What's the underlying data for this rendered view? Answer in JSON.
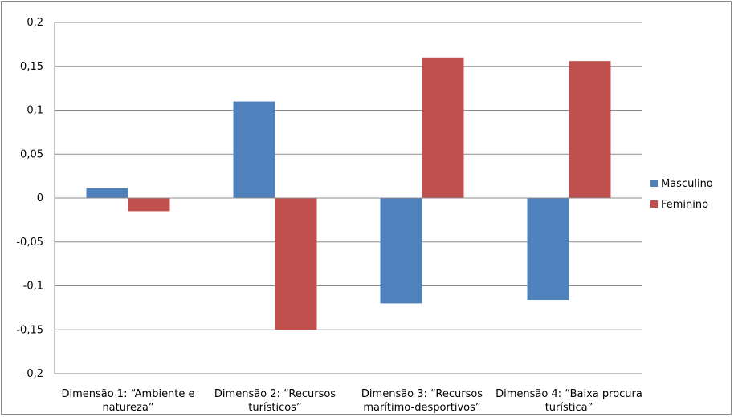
{
  "chart_data": {
    "type": "bar",
    "categories": [
      [
        "Dimensão 1: “Ambiente e",
        "natureza”"
      ],
      [
        "Dimensão 2: “Recursos",
        "turísticos”"
      ],
      [
        "Dimensão 3: “Recursos",
        "marítimo-desportivos”"
      ],
      [
        "Dimensão 4: “Baixa procura",
        "turística”"
      ]
    ],
    "series": [
      {
        "name": "Masculino",
        "color": "#4f81bd",
        "values": [
          0.011,
          0.11,
          -0.12,
          -0.116
        ]
      },
      {
        "name": "Feminino",
        "color": "#c0504d",
        "values": [
          -0.015,
          -0.15,
          0.16,
          0.156
        ]
      }
    ],
    "ylim": [
      -0.2,
      0.2
    ],
    "yticks": [
      "-0,2",
      "-0,15",
      "-0,1",
      "-0,05",
      "0",
      "0,05",
      "0,1",
      "0,15",
      "0,2"
    ],
    "ytick_values": [
      -0.2,
      -0.15,
      -0.1,
      -0.05,
      0,
      0.05,
      0.1,
      0.15,
      0.2
    ],
    "grid": true,
    "legend": "right",
    "title": "",
    "xlabel": "",
    "ylabel": ""
  }
}
